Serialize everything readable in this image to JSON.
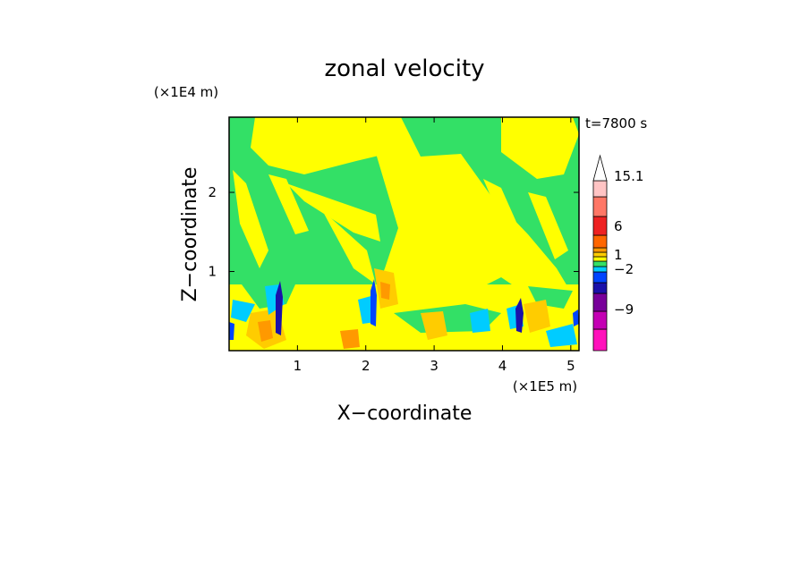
{
  "chart_data": {
    "type": "heatmap",
    "title": "zonal velocity",
    "xlabel": "X−coordinate",
    "ylabel": "Z−coordinate",
    "x_unit": "(×1E5 m)",
    "y_unit": "(×1E4 m)",
    "time_label": "t=7800 s",
    "xlim": [
      0.0,
      5.12
    ],
    "ylim": [
      0.0,
      2.95
    ],
    "x_ticks": [
      1,
      2,
      3,
      4,
      5
    ],
    "y_ticks": [
      1,
      2
    ],
    "colorbar": {
      "levels": [
        {
          "color": "#ff11bb"
        },
        {
          "color": "#c400b4"
        },
        {
          "color": "#78009a"
        },
        {
          "color": "#1a11aa"
        },
        {
          "color": "#0044ff"
        },
        {
          "color": "#00ccff"
        },
        {
          "color": "#33e066"
        },
        {
          "color": "#ffff00"
        },
        {
          "color": "#ffcc00"
        },
        {
          "color": "#ff9900"
        },
        {
          "color": "#ff6600"
        },
        {
          "color": "#ee2222"
        },
        {
          "color": "#ff7766"
        },
        {
          "color": "#ffc4c4"
        }
      ],
      "labels": [
        "15.1",
        "6",
        "1",
        "−2",
        "−9"
      ],
      "extend_top": true
    }
  }
}
